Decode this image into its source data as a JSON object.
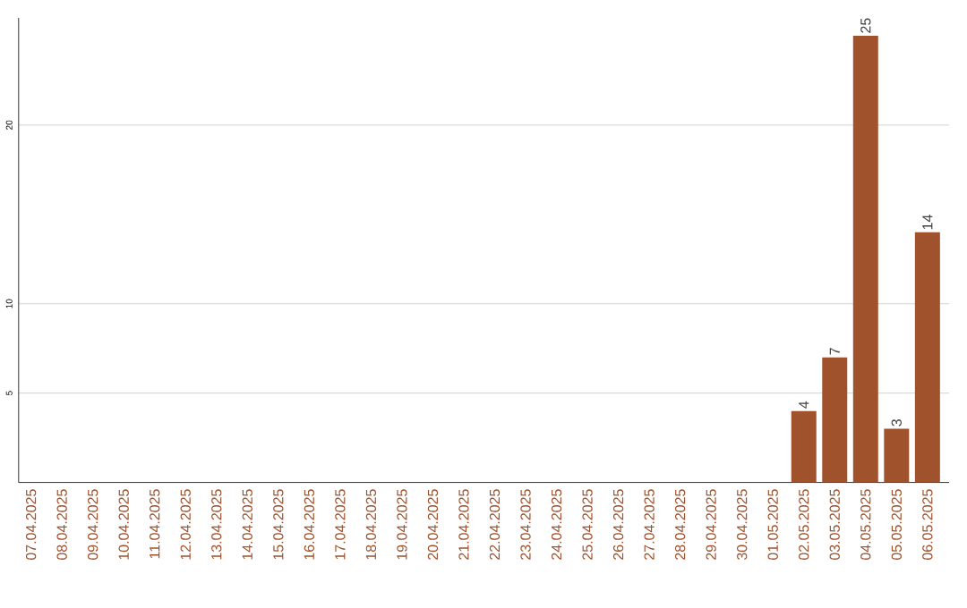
{
  "chart_data": {
    "type": "bar",
    "categories": [
      "07.04.2025",
      "08.04.2025",
      "09.04.2025",
      "10.04.2025",
      "11.04.2025",
      "12.04.2025",
      "13.04.2025",
      "14.04.2025",
      "15.04.2025",
      "16.04.2025",
      "17.04.2025",
      "18.04.2025",
      "19.04.2025",
      "20.04.2025",
      "21.04.2025",
      "22.04.2025",
      "23.04.2025",
      "24.04.2025",
      "25.04.2025",
      "26.04.2025",
      "27.04.2025",
      "28.04.2025",
      "29.04.2025",
      "30.04.2025",
      "01.05.2025",
      "02.05.2025",
      "03.05.2025",
      "04.05.2025",
      "05.05.2025",
      "06.05.2025"
    ],
    "values": [
      0,
      0,
      0,
      0,
      0,
      0,
      0,
      0,
      0,
      0,
      0,
      0,
      0,
      0,
      0,
      0,
      0,
      0,
      0,
      0,
      0,
      0,
      0,
      0,
      0,
      4,
      7,
      25,
      3,
      14
    ],
    "value_labels": [
      null,
      null,
      null,
      null,
      null,
      null,
      null,
      null,
      null,
      null,
      null,
      null,
      null,
      null,
      null,
      null,
      null,
      null,
      null,
      null,
      null,
      null,
      null,
      null,
      null,
      "4",
      "7",
      "25",
      "3",
      "14"
    ],
    "color": "#a0522d",
    "ylim": [
      0,
      26
    ],
    "yticks": [
      5,
      10,
      20
    ],
    "grid": "y"
  }
}
